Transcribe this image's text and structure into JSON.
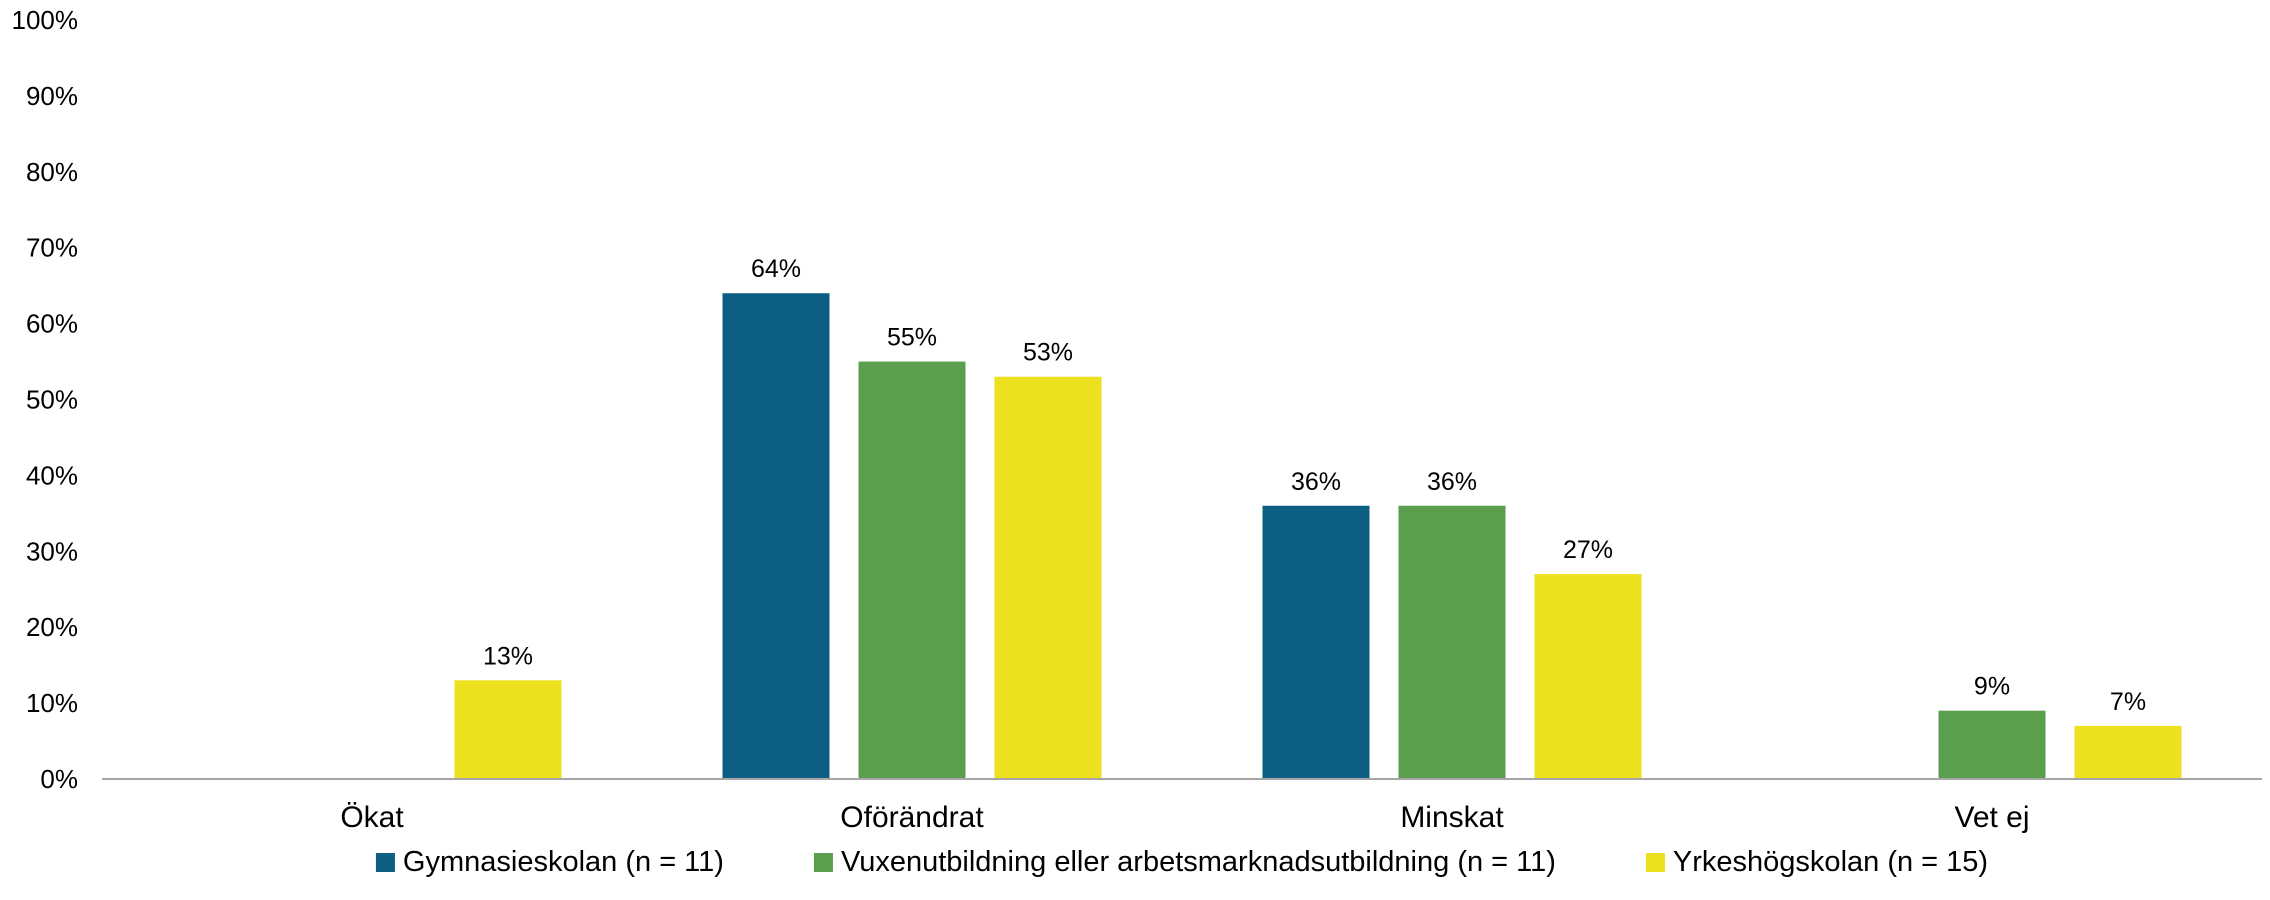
{
  "chart_data": {
    "type": "bar",
    "categories": [
      "Ökat",
      "Oförändrat",
      "Minskat",
      "Vet ej"
    ],
    "series": [
      {
        "name": "Gymnasieskolan (n = 11)",
        "color": "#0d5e83",
        "values": [
          0,
          64,
          36,
          0
        ],
        "labels": [
          "",
          "64%",
          "36%",
          ""
        ]
      },
      {
        "name": "Vuxenutbildning eller arbetsmarknadsutbildning (n = 11)",
        "color": "#5a9e4e",
        "values": [
          0,
          55,
          36,
          9
        ],
        "labels": [
          "",
          "55%",
          "36%",
          "9%"
        ]
      },
      {
        "name": "Yrkeshögskolan (n = 15)",
        "color": "#ede01f",
        "values": [
          13,
          53,
          27,
          7
        ],
        "labels": [
          "13%",
          "53%",
          "27%",
          "7%"
        ]
      }
    ],
    "y_ticks": [
      "0%",
      "10%",
      "20%",
      "30%",
      "40%",
      "50%",
      "60%",
      "70%",
      "80%",
      "90%",
      "100%"
    ],
    "ylim": [
      0,
      100
    ],
    "grid": false,
    "legend_position": "bottom"
  }
}
